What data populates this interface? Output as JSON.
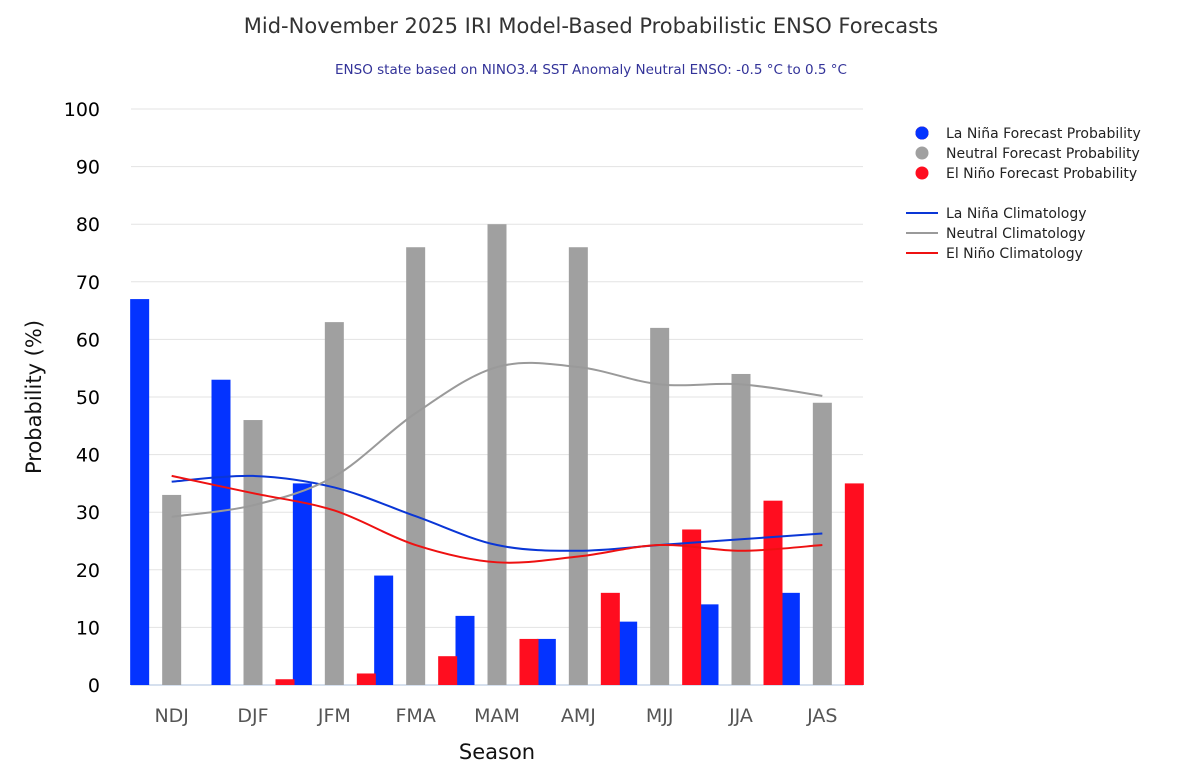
{
  "title": "Mid-November 2025 IRI Model-Based Probabilistic ENSO Forecasts",
  "subtitle": "ENSO state based on NINO3.4 SST Anomaly Neutral ENSO: -0.5 °C to 0.5 °C",
  "colors": {
    "la_nina": "#0433ff",
    "neutral": "#a0a0a0",
    "el_nino": "#ff0d1f",
    "la_nina_clim": "#0a36d6",
    "neutral_clim": "#9a9a9a",
    "el_nino_clim": "#ee1111",
    "grid": "#e3e3e3"
  },
  "chart_data": {
    "type": "bar",
    "title": "Mid-November 2025 IRI Model-Based Probabilistic ENSO Forecasts",
    "subtitle": "ENSO state based on NINO3.4 SST Anomaly Neutral ENSO: -0.5 °C to 0.5 °C",
    "xlabel": "Season",
    "ylabel": "Probability (%)",
    "ylim": [
      0,
      100
    ],
    "yticks": [
      0,
      10,
      20,
      30,
      40,
      50,
      60,
      70,
      80,
      90,
      100
    ],
    "grid": true,
    "legend_position": "top-right",
    "categories": [
      "NDJ",
      "DJF",
      "JFM",
      "FMA",
      "MAM",
      "AMJ",
      "MJJ",
      "JJA",
      "JAS"
    ],
    "series": [
      {
        "name": "La Niña Forecast Probability",
        "kind": "bar",
        "color_key": "la_nina",
        "values": [
          67,
          53,
          35,
          19,
          12,
          8,
          11,
          14,
          16
        ]
      },
      {
        "name": "Neutral Forecast Probability",
        "kind": "bar",
        "color_key": "neutral",
        "values": [
          33,
          46,
          63,
          76,
          80,
          76,
          62,
          54,
          49
        ]
      },
      {
        "name": "El Niño Forecast Probability",
        "kind": "bar",
        "color_key": "el_nino",
        "values": [
          0,
          1,
          2,
          5,
          8,
          16,
          27,
          32,
          35
        ]
      },
      {
        "name": "La Niña Climatology",
        "kind": "line",
        "color_key": "la_nina_clim",
        "values": [
          35.3,
          36.3,
          34.3,
          29.3,
          24.3,
          23.3,
          24.3,
          25.3,
          26.3
        ]
      },
      {
        "name": "Neutral Climatology",
        "kind": "line",
        "color_key": "neutral_clim",
        "values": [
          29.2,
          31.2,
          36.2,
          47.2,
          55.2,
          55.2,
          52.2,
          52.2,
          50.2
        ]
      },
      {
        "name": "El Niño Climatology",
        "kind": "line",
        "color_key": "el_nino_clim",
        "values": [
          36.3,
          33.3,
          30.3,
          24.3,
          21.3,
          22.3,
          24.3,
          23.3,
          24.3
        ]
      }
    ]
  }
}
